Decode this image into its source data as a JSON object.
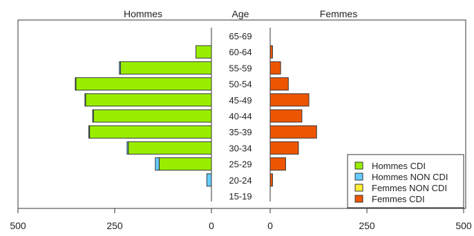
{
  "chart_data": {
    "type": "bar",
    "subtype": "population-pyramid",
    "headers": {
      "left": "Hommes",
      "center": "Age",
      "right": "Femmes"
    },
    "age_groups": [
      "65-69",
      "60-64",
      "55-59",
      "50-54",
      "45-49",
      "40-44",
      "35-39",
      "30-34",
      "25-29",
      "20-24",
      "15-19"
    ],
    "x_ticks_left": [
      "500",
      "250",
      "0"
    ],
    "x_ticks_right": [
      "0",
      "250",
      "500"
    ],
    "xlim": [
      0,
      500
    ],
    "series": [
      {
        "name": "Hommes CDI",
        "side": "left",
        "color": "#99ee00",
        "values": [
          0,
          40,
          235,
          350,
          325,
          305,
          315,
          215,
          135,
          0,
          0
        ]
      },
      {
        "name": "Hommes NON CDI",
        "side": "left",
        "color": "#66ccff",
        "values": [
          0,
          0,
          3,
          2,
          2,
          2,
          2,
          3,
          10,
          12,
          0
        ]
      },
      {
        "name": "Femmes NON CDI",
        "side": "right",
        "color": "#ffee33",
        "values": [
          0,
          0,
          0,
          0,
          0,
          0,
          0,
          0,
          0,
          0,
          0
        ]
      },
      {
        "name": "Femmes CDI",
        "side": "right",
        "color": "#ee5500",
        "values": [
          0,
          6,
          27,
          47,
          100,
          82,
          120,
          73,
          40,
          6,
          0
        ]
      }
    ],
    "legend": {
      "position": "bottom-right"
    }
  }
}
